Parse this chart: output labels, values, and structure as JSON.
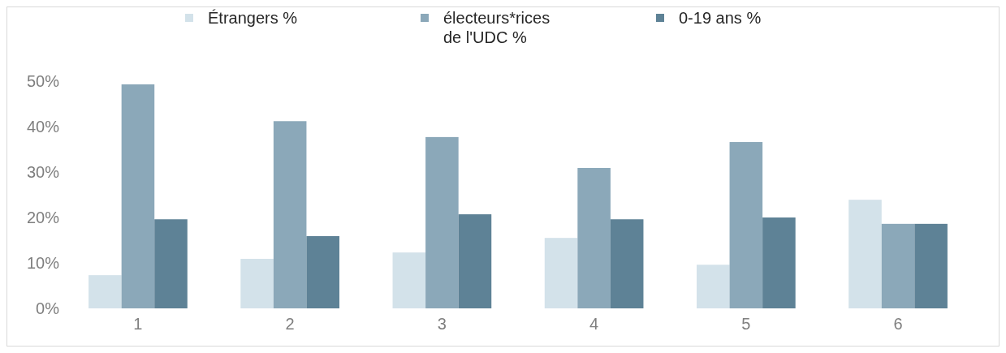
{
  "chart_data": {
    "type": "bar",
    "categories": [
      "1",
      "2",
      "3",
      "4",
      "5",
      "6"
    ],
    "series": [
      {
        "name": "Étrangers %",
        "color": "#d3e2ea",
        "values": [
          7.3,
          10.9,
          12.3,
          15.5,
          9.6,
          23.9
        ]
      },
      {
        "name": "électeurs*rices de l'UDC %",
        "color": "#8ba8b9",
        "values": [
          49.3,
          41.2,
          37.7,
          30.9,
          36.6,
          18.6
        ]
      },
      {
        "name": "0-19 ans %",
        "color": "#5e8296",
        "values": [
          19.6,
          15.9,
          20.7,
          19.6,
          20.0,
          18.6
        ]
      }
    ],
    "ylim": [
      0,
      50
    ],
    "yticks": [
      {
        "value": 0,
        "label": "0%"
      },
      {
        "value": 10,
        "label": "10%"
      },
      {
        "value": 20,
        "label": "20%"
      },
      {
        "value": 30,
        "label": "30%"
      },
      {
        "value": 40,
        "label": "40%"
      },
      {
        "value": 50,
        "label": "50%"
      }
    ],
    "grid": false,
    "legend": "top"
  }
}
